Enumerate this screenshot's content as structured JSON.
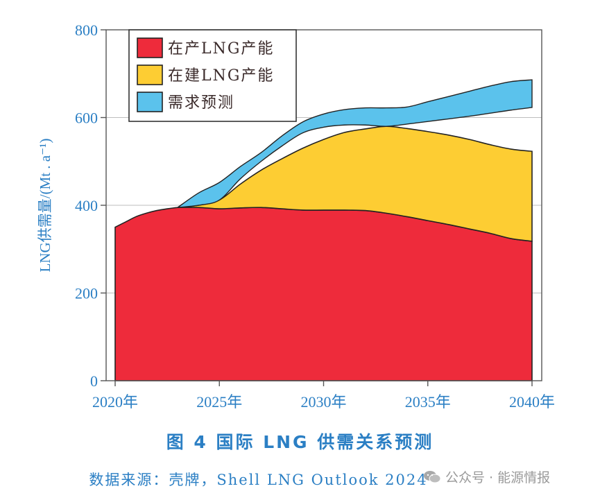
{
  "chart_data": {
    "type": "area",
    "title": "",
    "xlabel": "",
    "ylabel": "LNG供需量/(Mt . a⁻¹)",
    "xlim": [
      2020,
      2040
    ],
    "ylim": [
      0,
      800
    ],
    "yticks": [
      0,
      200,
      400,
      600,
      800
    ],
    "xticks": [
      2020,
      2025,
      2030,
      2035,
      2040
    ],
    "xtick_labels": [
      "2020年",
      "2025年",
      "2030年",
      "2035年",
      "2040年"
    ],
    "grid": "horizontal",
    "legend_position": "top-left",
    "series": [
      {
        "name": "在产LNG产能",
        "color": "#ee2b3b",
        "x": [
          2020,
          2020.5,
          2021,
          2021.5,
          2022,
          2022.5,
          2023,
          2023.5,
          2024,
          2024.5,
          2025,
          2026,
          2027,
          2028,
          2029,
          2030,
          2031,
          2032,
          2033,
          2034,
          2035,
          2036,
          2037,
          2038,
          2039,
          2040
        ],
        "y": [
          350,
          362,
          374,
          382,
          388,
          392,
          395,
          396,
          395,
          394,
          392,
          394,
          395,
          392,
          389,
          389,
          389,
          388,
          382,
          374,
          365,
          356,
          346,
          336,
          324,
          318
        ]
      },
      {
        "name": "在建LNG产能",
        "color": "#fdcd33",
        "x": [
          2023,
          2024,
          2025,
          2026,
          2027,
          2028,
          2029,
          2030,
          2031,
          2032,
          2033,
          2034,
          2035,
          2036,
          2037,
          2038,
          2039,
          2040
        ],
        "y_top": [
          395,
          400,
          412,
          448,
          480,
          506,
          530,
          550,
          566,
          574,
          580,
          575,
          568,
          560,
          550,
          538,
          528,
          523
        ]
      },
      {
        "name": "需求预测",
        "color": "#5bc2ec",
        "x": [
          2023,
          2024,
          2025,
          2026,
          2027,
          2028,
          2029,
          2030,
          2031,
          2032,
          2033,
          2034,
          2035,
          2036,
          2037,
          2038,
          2039,
          2040
        ],
        "y_low": [
          395,
          400,
          412,
          460,
          500,
          535,
          565,
          578,
          583,
          583,
          580,
          585,
          591,
          597,
          603,
          610,
          617,
          623
        ],
        "y_high": [
          395,
          428,
          452,
          488,
          520,
          558,
          590,
          608,
          618,
          622,
          622,
          624,
          636,
          648,
          660,
          672,
          682,
          686
        ]
      }
    ],
    "overlap_color": "#52c2a5"
  },
  "fig_caption": "图 4  国际 LNG 供需关系预测",
  "source_caption": "数据来源：壳牌，Shell  LNG  Outlook  2024",
  "watermark": {
    "text": "公众号 · 能源情报",
    "icon": "wechat-icon"
  }
}
